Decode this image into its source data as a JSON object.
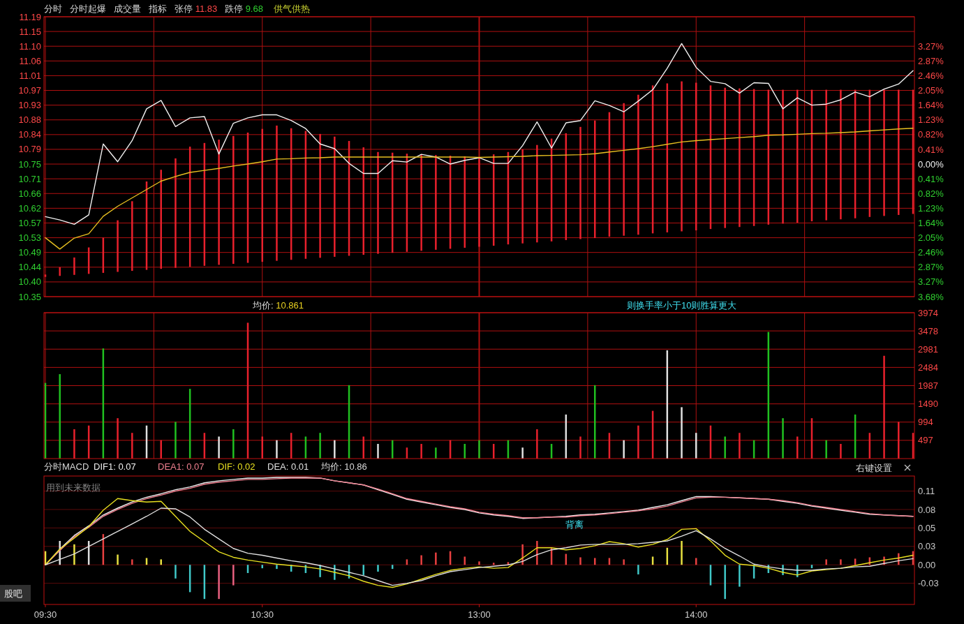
{
  "chart_data": [
    {
      "type": "line",
      "ylim": [
        10.354,
        11.19
      ],
      "y2lim": [
        -3.684,
        4.093
      ],
      "grid": true,
      "tick_labels": "y",
      "categories": [
        null,
        null,
        null,
        null,
        null,
        null,
        null,
        null,
        null,
        null,
        null,
        null,
        null,
        null,
        null,
        null,
        null,
        null,
        null,
        null,
        null,
        null,
        null,
        null,
        null,
        null,
        null,
        null,
        null,
        null,
        null,
        null,
        null,
        null,
        null,
        null,
        null,
        null,
        null,
        null,
        null,
        null,
        null,
        null,
        null,
        null,
        null,
        null,
        null,
        null,
        null,
        null,
        null,
        null,
        null,
        null,
        null,
        null,
        null,
        null,
        null
      ],
      "yticks": [
        {
          "value": 11.19,
          "label": "11.19"
        },
        {
          "value": 11.146,
          "label": "11.15"
        },
        {
          "value": 11.102,
          "label": "11.10"
        },
        {
          "value": 11.058,
          "label": "11.06"
        },
        {
          "value": 11.014,
          "label": "11.01"
        },
        {
          "value": 10.97,
          "label": "10.97"
        },
        {
          "value": 10.926,
          "label": "10.93"
        },
        {
          "value": 10.882,
          "label": "10.88"
        },
        {
          "value": 10.838,
          "label": "10.84"
        },
        {
          "value": 10.794,
          "label": "10.79"
        },
        {
          "value": 10.75,
          "label": "10.75"
        },
        {
          "value": 10.706,
          "label": "10.71"
        },
        {
          "value": 10.662,
          "label": "10.66"
        },
        {
          "value": 10.618,
          "label": "10.62"
        },
        {
          "value": 10.574,
          "label": "10.57"
        },
        {
          "value": 10.53,
          "label": "10.53"
        },
        {
          "value": 10.486,
          "label": "10.49"
        },
        {
          "value": 10.442,
          "label": "10.44"
        },
        {
          "value": 10.398,
          "label": "10.40"
        },
        {
          "value": 10.354,
          "label": "10.35"
        }
      ],
      "y2ticks": [
        {
          "value": 3.274,
          "label": "3.27%"
        },
        {
          "value": 2.865,
          "label": "2.87%"
        },
        {
          "value": 2.456,
          "label": "2.46%"
        },
        {
          "value": 2.047,
          "label": "2.05%"
        },
        {
          "value": 1.637,
          "label": "1.64%"
        },
        {
          "value": 1.228,
          "label": "1.23%"
        },
        {
          "value": 0.819,
          "label": "0.82%"
        },
        {
          "value": 0.409,
          "label": "0.41%"
        },
        {
          "value": 0,
          "label": "0.00%"
        },
        {
          "value": -0.409,
          "label": "0.41%"
        },
        {
          "value": -0.819,
          "label": "0.82%"
        },
        {
          "value": -1.228,
          "label": "1.23%"
        },
        {
          "value": -1.637,
          "label": "1.64%"
        },
        {
          "value": -2.047,
          "label": "2.05%"
        },
        {
          "value": -2.456,
          "label": "2.46%"
        },
        {
          "value": -2.865,
          "label": "2.87%"
        },
        {
          "value": -3.274,
          "label": "3.27%"
        },
        {
          "value": -3.684,
          "label": "3.68%"
        }
      ],
      "annotations": [
        "分时",
        "分时起爆",
        "成交量",
        "指标",
        "张停 11.83",
        "跌停 9.68",
        "供气供热",
        "均价:  10.861",
        "则换手率小于10则胜算更大"
      ],
      "series": [
        {
          "type": "bar",
          "color": "#e8202c",
          "base": [
            10.413,
            10.416,
            10.419,
            10.422,
            10.425,
            10.428,
            10.431,
            10.434,
            10.437,
            10.44,
            10.443,
            10.446,
            10.449,
            10.452,
            10.455,
            10.458,
            10.461,
            10.464,
            10.467,
            10.47,
            10.473,
            10.476,
            10.479,
            10.482,
            10.485,
            10.488,
            10.491,
            10.494,
            10.497,
            10.5,
            10.503,
            10.506,
            10.51,
            10.513,
            10.516,
            10.519,
            10.523,
            10.526,
            10.529,
            10.533,
            10.536,
            10.539,
            10.543,
            10.546,
            10.549,
            10.552,
            10.556,
            10.559,
            10.562,
            10.565,
            10.569,
            10.572,
            10.575,
            10.579,
            10.582,
            10.585,
            10.588,
            10.592,
            10.595,
            10.598,
            10.601
          ],
          "values": [
            0.007,
            0.026,
            0.052,
            0.079,
            0.105,
            0.154,
            0.208,
            0.264,
            0.296,
            0.327,
            0.359,
            0.367,
            0.374,
            0.382,
            0.389,
            0.397,
            0.404,
            0.393,
            0.382,
            0.37,
            0.359,
            0.343,
            0.321,
            0.304,
            0.299,
            0.293,
            0.288,
            0.283,
            0.278,
            0.273,
            0.268,
            0.273,
            0.276,
            0.281,
            0.291,
            0.307,
            0.319,
            0.335,
            0.351,
            0.372,
            0.396,
            0.418,
            0.442,
            0.445,
            0.448,
            0.441,
            0.429,
            0.419,
            0.414,
            0.409,
            0.403,
            0.4,
            0.397,
            0.393,
            0.39,
            0.387,
            0.384,
            0.38,
            0.377,
            0.374,
            0.371
          ]
        },
        {
          "color": "#f0f0f0",
          "values": [
            10.593,
            10.583,
            10.57,
            10.598,
            10.81,
            10.757,
            10.82,
            10.915,
            10.94,
            10.862,
            10.888,
            10.892,
            10.78,
            10.872,
            10.888,
            10.897,
            10.897,
            10.88,
            10.856,
            10.81,
            10.796,
            10.752,
            10.722,
            10.722,
            10.76,
            10.756,
            10.779,
            10.771,
            10.75,
            10.761,
            10.769,
            10.752,
            10.752,
            10.805,
            10.876,
            10.798,
            10.873,
            10.88,
            10.939,
            10.925,
            10.906,
            10.938,
            10.972,
            11.036,
            11.11,
            11.039,
            10.997,
            10.99,
            10.962,
            10.993,
            10.991,
            10.915,
            10.948,
            10.926,
            10.929,
            10.942,
            10.965,
            10.951,
            10.974,
            10.989,
            11.029
          ]
        },
        {
          "color": "#e8c020",
          "values": [
            10.53,
            10.496,
            10.529,
            10.542,
            10.594,
            10.624,
            10.649,
            10.674,
            10.699,
            10.713,
            10.725,
            10.731,
            10.737,
            10.744,
            10.75,
            10.757,
            10.765,
            10.766,
            10.768,
            10.769,
            10.771,
            10.771,
            10.771,
            10.771,
            10.771,
            10.771,
            10.771,
            10.771,
            10.771,
            10.771,
            10.77,
            10.771,
            10.772,
            10.773,
            10.775,
            10.776,
            10.777,
            10.778,
            10.781,
            10.786,
            10.791,
            10.796,
            10.802,
            10.809,
            10.816,
            10.82,
            10.823,
            10.826,
            10.829,
            10.832,
            10.836,
            10.837,
            10.839,
            10.841,
            10.842,
            10.844,
            10.846,
            10.849,
            10.852,
            10.855,
            10.857
          ]
        }
      ]
    },
    {
      "type": "bar",
      "ylim": [
        0,
        3974
      ],
      "grid": true,
      "tick_labels": "y",
      "categories": [
        null,
        null,
        null,
        null,
        null,
        null,
        null,
        null,
        null,
        null,
        null,
        null,
        null,
        null,
        null,
        null,
        null,
        null,
        null,
        null,
        null,
        null,
        null,
        null,
        null,
        null,
        null,
        null,
        null,
        null,
        null,
        null,
        null,
        null,
        null,
        null,
        null,
        null,
        null,
        null,
        null,
        null,
        null,
        null,
        null,
        null,
        null,
        null,
        null,
        null,
        null,
        null,
        null,
        null,
        null,
        null,
        null,
        null,
        null,
        null,
        null
      ],
      "yticks": [
        497,
        994,
        1490,
        1987,
        2484,
        2981,
        3478,
        3974
      ],
      "series": [
        {
          "values": [
            2060,
            2300,
            800,
            900,
            3000,
            1100,
            700,
            900,
            500,
            1000,
            1900,
            700,
            600,
            800,
            3700,
            600,
            500,
            700,
            600,
            700,
            500,
            2000,
            600,
            400,
            500,
            300,
            400,
            300,
            500,
            400,
            500,
            400,
            500,
            300,
            800,
            400,
            1200,
            600,
            2000,
            700,
            500,
            900,
            1300,
            2950,
            1400,
            700,
            900,
            600,
            700,
            500,
            3450,
            1100,
            600,
            1100,
            500,
            400,
            1200,
            700,
            2800,
            1000,
            700
          ],
          "colors": [
            "#20c020",
            "#20c020",
            "#e8202c",
            "#e8202c",
            "#20c020",
            "#e8202c",
            "#e8202c",
            "#e0e0e0",
            "#e8202c",
            "#20c020",
            "#20c020",
            "#e8202c",
            "#e0e0e0",
            "#20c020",
            "#e8202c",
            "#e8202c",
            "#e0e0e0",
            "#e8202c",
            "#20c020",
            "#20c020",
            "#e0e0e0",
            "#20c020",
            "#e8202c",
            "#e0e0e0",
            "#20c020",
            "#e8202c",
            "#e8202c",
            "#20c020",
            "#e8202c",
            "#20c020",
            "#20c020",
            "#e8202c",
            "#20c020",
            "#e0e0e0",
            "#e8202c",
            "#20c020",
            "#e0e0e0",
            "#e8202c",
            "#20c020",
            "#e8202c",
            "#e0e0e0",
            "#e8202c",
            "#e8202c",
            "#e0e0e0",
            "#e0e0e0",
            "#e0e0e0",
            "#e8202c",
            "#20c020",
            "#e8202c",
            "#20c020",
            "#20c020",
            "#20c020",
            "#e8202c",
            "#e8202c",
            "#20c020",
            "#e8202c",
            "#20c020",
            "#e8202c",
            "#e8202c",
            "#e8202c",
            "#e8202c"
          ]
        }
      ]
    },
    {
      "type": "line",
      "title": "分时MACD",
      "ylim": [
        -0.058,
        0.13
      ],
      "grid": "y",
      "legend": "top",
      "categories": [
        "09:30",
        null,
        null,
        null,
        null,
        null,
        null,
        null,
        null,
        null,
        null,
        null,
        null,
        null,
        null,
        "10:30",
        null,
        null,
        null,
        null,
        null,
        null,
        null,
        null,
        null,
        null,
        null,
        null,
        null,
        null,
        "13:00",
        null,
        null,
        null,
        null,
        null,
        null,
        null,
        null,
        null,
        null,
        null,
        null,
        null,
        null,
        "14:00",
        null,
        null,
        null,
        null,
        null,
        null,
        null,
        null,
        null,
        null,
        null,
        null,
        null,
        null,
        null
      ],
      "yticks": [
        {
          "value": 0.108,
          "label": "0.11"
        },
        {
          "value": 0.081,
          "label": "0.08"
        },
        {
          "value": 0.054,
          "label": "0.05"
        },
        {
          "value": 0.027,
          "label": "0.03"
        },
        {
          "value": 0,
          "label": "0.00"
        },
        {
          "value": -0.027,
          "label": "-0.03"
        }
      ],
      "annotations": [
        "均价: 10.86",
        "用到未来数据",
        "右键设置",
        "背离",
        "股吧"
      ],
      "series": [
        {
          "type": "bar",
          "values": [
            0.02,
            0.035,
            0.03,
            0.035,
            0.045,
            0.015,
            0.008,
            0.01,
            0.008,
            -0.02,
            -0.04,
            -0.05,
            -0.05,
            -0.03,
            -0.012,
            -0.005,
            -0.006,
            -0.01,
            -0.012,
            -0.018,
            -0.022,
            -0.02,
            -0.015,
            -0.01,
            -0.006,
            0.008,
            0.014,
            0.018,
            0.02,
            0.012,
            0.005,
            0.003,
            0.004,
            0.03,
            0.035,
            0.025,
            0.016,
            0.011,
            0.01,
            0.01,
            0.008,
            -0.014,
            0.012,
            0.025,
            0.035,
            0.01,
            -0.03,
            -0.05,
            -0.032,
            -0.02,
            -0.012,
            -0.015,
            -0.018,
            -0.005,
            0.008,
            0.008,
            0.009,
            0.011,
            0.012,
            0.017,
            0.02
          ],
          "colors": [
            "#e8e040",
            "#e0e0e0",
            "#e8e040",
            "#e0e0e0",
            "#e84040",
            "#e8e040",
            "#e84040",
            "#e8e040",
            "#e8e040",
            "#40c8c8",
            "#40c8c8",
            "#40c8c8",
            "#e86080",
            "#e86080",
            "#40c8c8",
            "#40c8c8",
            "#40c8c8",
            "#40c8c8",
            "#40c8c8",
            "#40c8c8",
            "#40c8c8",
            "#40c8c8",
            "#40c8c8",
            "#40c8c8",
            "#40c8c8",
            "#e84040",
            "#e84040",
            "#e84040",
            "#e84040",
            "#e84040",
            "#e84040",
            "#e84040",
            "#e84040",
            "#e84040",
            "#e84040",
            "#e84040",
            "#e84040",
            "#e84040",
            "#e84040",
            "#e84040",
            "#e84040",
            "#40c8c8",
            "#e8e040",
            "#e8e040",
            "#e8e040",
            "#e84040",
            "#40c8c8",
            "#40c8c8",
            "#40c8c8",
            "#40c8c8",
            "#40c8c8",
            "#40c8c8",
            "#40c8c8",
            "#40c8c8",
            "#e84040",
            "#e84040",
            "#e84040",
            "#e84040",
            "#e84040",
            "#e84040",
            "#e84040"
          ]
        },
        {
          "name": "DIF1: 0.07",
          "color": "#f0f0f0",
          "values": [
            0,
            0.023,
            0.043,
            0.057,
            0.073,
            0.083,
            0.092,
            0.099,
            0.104,
            0.11,
            0.114,
            0.12,
            0.123,
            0.125,
            0.127,
            0.127,
            0.128,
            0.128,
            0.128,
            0.127,
            0.123,
            0.12,
            0.117,
            0.11,
            0.103,
            0.096,
            0.092,
            0.088,
            0.084,
            0.081,
            0.076,
            0.073,
            0.071,
            0.068,
            0.069,
            0.07,
            0.071,
            0.073,
            0.074,
            0.076,
            0.078,
            0.08,
            0.084,
            0.088,
            0.094,
            0.1,
            0.1,
            0.099,
            0.098,
            0.097,
            0.096,
            0.093,
            0.09,
            0.086,
            0.083,
            0.08,
            0.077,
            0.074,
            0.073,
            0.072,
            0.071
          ]
        },
        {
          "name": "DEA1: 0.07",
          "color": "#f08090",
          "values": [
            0,
            0.021,
            0.041,
            0.055,
            0.071,
            0.081,
            0.09,
            0.097,
            0.102,
            0.108,
            0.112,
            0.118,
            0.121,
            0.123,
            0.125,
            0.125,
            0.126,
            0.127,
            0.127,
            0.127,
            0.123,
            0.12,
            0.117,
            0.111,
            0.104,
            0.097,
            0.093,
            0.089,
            0.085,
            0.082,
            0.077,
            0.074,
            0.072,
            0.069,
            0.069,
            0.07,
            0.07,
            0.072,
            0.073,
            0.075,
            0.077,
            0.079,
            0.082,
            0.086,
            0.092,
            0.098,
            0.099,
            0.099,
            0.098,
            0.097,
            0.096,
            0.094,
            0.091,
            0.087,
            0.084,
            0.081,
            0.078,
            0.075,
            0.073,
            0.072,
            0.071
          ]
        },
        {
          "name": "DIF: 0.02",
          "color": "#e8e020",
          "values": [
            0,
            0.023,
            0.039,
            0.056,
            0.08,
            0.097,
            0.094,
            0.092,
            0.093,
            0.071,
            0.049,
            0.034,
            0.019,
            0.011,
            0.007,
            0.004,
            0.001,
            -0.001,
            -0.003,
            -0.006,
            -0.011,
            -0.016,
            -0.024,
            -0.03,
            -0.033,
            -0.028,
            -0.021,
            -0.014,
            -0.008,
            -0.005,
            -0.003,
            -0.005,
            -0.004,
            0.01,
            0.025,
            0.025,
            0.022,
            0.024,
            0.028,
            0.034,
            0.031,
            0.026,
            0.03,
            0.037,
            0.052,
            0.053,
            0.035,
            0.014,
            0.001,
            -0.001,
            -0.005,
            -0.011,
            -0.015,
            -0.009,
            -0.007,
            -0.005,
            -0.001,
            0.003,
            0.007,
            0.01,
            0.014
          ]
        },
        {
          "name": "DEA: 0.01",
          "color": "#e0e0e0",
          "values": [
            0,
            0.008,
            0.016,
            0.027,
            0.038,
            0.049,
            0.06,
            0.071,
            0.083,
            0.082,
            0.07,
            0.052,
            0.038,
            0.024,
            0.017,
            0.014,
            0.01,
            0.006,
            0.003,
            -0.001,
            -0.006,
            -0.011,
            -0.016,
            -0.023,
            -0.03,
            -0.027,
            -0.023,
            -0.016,
            -0.01,
            -0.007,
            -0.004,
            -0.002,
            0,
            0.005,
            0.015,
            0.022,
            0.025,
            0.029,
            0.03,
            0.03,
            0.03,
            0.031,
            0.033,
            0.035,
            0.042,
            0.05,
            0.038,
            0.024,
            0.013,
            0.001,
            -0.003,
            -0.006,
            -0.008,
            -0.008,
            -0.006,
            -0.005,
            -0.003,
            -0.002,
            0.002,
            0.006,
            0.009
          ]
        }
      ]
    }
  ]
}
